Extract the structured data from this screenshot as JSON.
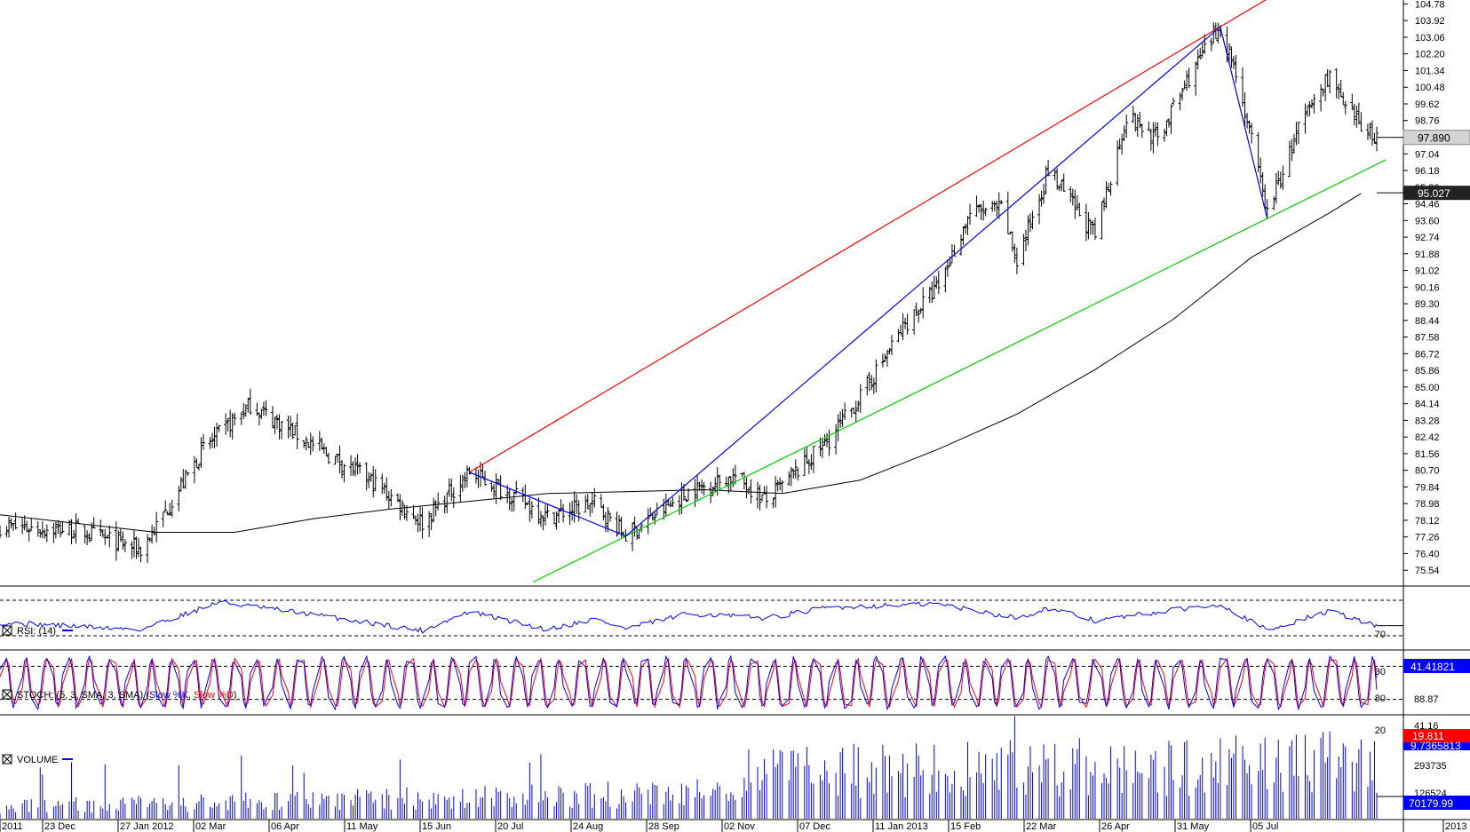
{
  "chart_data": {
    "type": "bar",
    "symbol": "",
    "price_axis": {
      "ticks": [
        "104.78",
        "103.92",
        "103.06",
        "102.20",
        "101.34",
        "100.48",
        "99.62",
        "98.76",
        "97.04",
        "96.18",
        "95.32",
        "94.46",
        "93.60",
        "92.74",
        "91.88",
        "91.02",
        "90.16",
        "89.30",
        "88.44",
        "87.58",
        "86.72",
        "85.86",
        "85.00",
        "84.14",
        "83.28",
        "82.42",
        "81.56",
        "80.70",
        "79.84",
        "78.98",
        "78.12",
        "77.26",
        "76.40",
        "75.54"
      ],
      "range": [
        75.0,
        104.8
      ],
      "last_price": "97.890",
      "ma_value": "95.027"
    },
    "x_axis": {
      "labels": [
        "2011",
        "23 Dec",
        "27 Jan 2012",
        "02 Mar",
        "06 Apr",
        "11 May",
        "15 Jun",
        "20 Jul",
        "24 Aug",
        "28 Sep",
        "02 Nov",
        "07 Dec",
        "11 Jan 2013",
        "15 Feb",
        "22 Mar",
        "26 Apr",
        "31 May",
        "05 Jul",
        "2013"
      ]
    },
    "price_key_points": [
      {
        "date": "2011-11-18",
        "close": 77.8
      },
      {
        "date": "2011-12-23",
        "close": 77.6
      },
      {
        "date": "2012-01-20",
        "close": 76.6
      },
      {
        "date": "2012-01-27",
        "close": 77.8
      },
      {
        "date": "2012-02-17",
        "close": 81.8
      },
      {
        "date": "2012-03-09",
        "close": 84.1
      },
      {
        "date": "2012-04-06",
        "close": 82.0
      },
      {
        "date": "2012-05-04",
        "close": 80.0
      },
      {
        "date": "2012-05-25",
        "close": 78.0
      },
      {
        "date": "2012-06-15",
        "close": 80.6
      },
      {
        "date": "2012-07-06",
        "close": 79.3
      },
      {
        "date": "2012-07-20",
        "close": 78.3
      },
      {
        "date": "2012-08-10",
        "close": 79.0
      },
      {
        "date": "2012-08-24",
        "close": 77.3
      },
      {
        "date": "2012-09-21",
        "close": 79.6
      },
      {
        "date": "2012-10-12",
        "close": 80.4
      },
      {
        "date": "2012-10-26",
        "close": 79.1
      },
      {
        "date": "2012-11-23",
        "close": 82.3
      },
      {
        "date": "2012-12-07",
        "close": 84.5
      },
      {
        "date": "2012-12-28",
        "close": 88.4
      },
      {
        "date": "2013-01-11",
        "close": 90.2
      },
      {
        "date": "2013-01-25",
        "close": 94.0
      },
      {
        "date": "2013-02-08",
        "close": 94.2
      },
      {
        "date": "2013-02-15",
        "close": 91.5
      },
      {
        "date": "2013-03-01",
        "close": 96.2
      },
      {
        "date": "2013-03-22",
        "close": 92.8
      },
      {
        "date": "2013-04-05",
        "close": 99.0
      },
      {
        "date": "2013-04-19",
        "close": 97.8
      },
      {
        "date": "2013-05-03",
        "close": 101.0
      },
      {
        "date": "2013-05-17",
        "close": 103.6
      },
      {
        "date": "2013-05-24",
        "close": 101.3
      },
      {
        "date": "2013-06-07",
        "close": 94.0
      },
      {
        "date": "2013-06-21",
        "close": 98.3
      },
      {
        "date": "2013-07-05",
        "close": 101.2
      },
      {
        "date": "2013-07-12",
        "close": 99.2
      },
      {
        "date": "2013-07-26",
        "close": 97.9
      }
    ],
    "moving_average_points": [
      {
        "date": "2011-11-18",
        "value": 78.4
      },
      {
        "date": "2012-01-27",
        "value": 77.5
      },
      {
        "date": "2012-03-02",
        "value": 77.5
      },
      {
        "date": "2012-04-06",
        "value": 78.2
      },
      {
        "date": "2012-05-11",
        "value": 78.7
      },
      {
        "date": "2012-06-15",
        "value": 79.1
      },
      {
        "date": "2012-07-20",
        "value": 79.5
      },
      {
        "date": "2012-08-24",
        "value": 79.6
      },
      {
        "date": "2012-09-28",
        "value": 79.7
      },
      {
        "date": "2012-11-02",
        "value": 79.5
      },
      {
        "date": "2012-12-07",
        "value": 80.2
      },
      {
        "date": "2013-01-11",
        "value": 81.8
      },
      {
        "date": "2013-02-15",
        "value": 83.6
      },
      {
        "date": "2013-03-22",
        "value": 85.9
      },
      {
        "date": "2013-04-26",
        "value": 88.5
      },
      {
        "date": "2013-05-31",
        "value": 91.7
      },
      {
        "date": "2013-07-05",
        "value": 94.0
      },
      {
        "date": "2013-07-19",
        "value": 95.0
      }
    ],
    "trendlines": [
      {
        "color": "#ff0000",
        "from": {
          "date": "2012-06-15",
          "price": 80.6
        },
        "to": {
          "date": "2013-05-17",
          "price": 103.6
        },
        "extends": true
      },
      {
        "color": "#00cc00",
        "from": {
          "date": "2012-08-24",
          "price": 77.3
        },
        "to": {
          "date": "2013-06-07",
          "price": 93.7
        },
        "extends": true
      },
      {
        "color": "#0000ff",
        "from": {
          "date": "2012-06-15",
          "price": 80.6
        },
        "to": {
          "date": "2012-08-24",
          "price": 77.3
        }
      },
      {
        "color": "#0000ff",
        "from": {
          "date": "2012-08-24",
          "price": 77.3
        },
        "to": {
          "date": "2013-05-17",
          "price": 103.6
        }
      },
      {
        "color": "#0000ff",
        "from": {
          "date": "2013-05-17",
          "price": 103.6
        },
        "to": {
          "date": "2013-06-07",
          "price": 93.7
        }
      }
    ],
    "rsi": {
      "label": "RSI: (14)",
      "levels": [
        "70",
        "30"
      ],
      "value": "41.41821",
      "top_tick": "",
      "key_points": [
        {
          "date": "2011-11-18",
          "value": 45
        },
        {
          "date": "2012-01-20",
          "value": 37
        },
        {
          "date": "2012-02-24",
          "value": 68
        },
        {
          "date": "2012-04-06",
          "value": 54
        },
        {
          "date": "2012-05-25",
          "value": 36
        },
        {
          "date": "2012-06-15",
          "value": 57
        },
        {
          "date": "2012-07-20",
          "value": 37
        },
        {
          "date": "2012-08-10",
          "value": 49
        },
        {
          "date": "2012-08-24",
          "value": 38
        },
        {
          "date": "2012-09-21",
          "value": 55
        },
        {
          "date": "2012-10-26",
          "value": 50
        },
        {
          "date": "2012-11-23",
          "value": 62
        },
        {
          "date": "2013-01-11",
          "value": 66
        },
        {
          "date": "2013-02-15",
          "value": 50
        },
        {
          "date": "2013-03-01",
          "value": 61
        },
        {
          "date": "2013-03-22",
          "value": 47
        },
        {
          "date": "2013-05-17",
          "value": 66
        },
        {
          "date": "2013-06-07",
          "value": 36
        },
        {
          "date": "2013-07-05",
          "value": 58
        },
        {
          "date": "2013-07-26",
          "value": 41
        }
      ]
    },
    "stoch": {
      "label": "STOCH: (5, 3, SMA, 3, SMA)",
      "k_label": "Slow %K",
      "d_label": "Slow %D",
      "levels": [
        "80",
        "20"
      ],
      "ticks": [
        "88.87",
        "41.16"
      ],
      "value": "19.811",
      "value2": "9.7365813",
      "swings_per_period": 60
    },
    "volume": {
      "label": "VOLUME",
      "ticks": [
        "293735",
        "126524"
      ],
      "value": "70179.99"
    }
  },
  "colors": {
    "price_bars": "#000000",
    "ma": "#000000",
    "rsi": "#0000ff",
    "stoch_k": "#0000ff",
    "stoch_d": "#ff0000",
    "volume": "#0000ff",
    "last_price_badge": "#d4d4d4",
    "ma_badge": "#222222",
    "rsi_badge": "#0000ff",
    "stoch_badge": "#ff0000",
    "volume_badge": "#0000ff"
  }
}
